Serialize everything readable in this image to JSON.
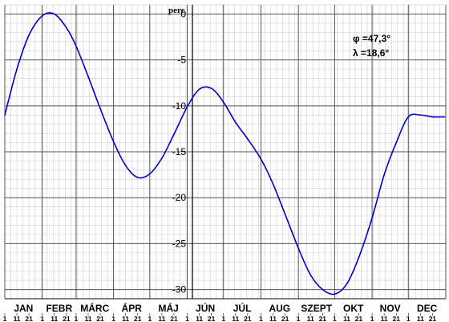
{
  "chart_data": {
    "type": "line",
    "title": "",
    "xlabel": "",
    "ylabel": "perc",
    "ylim": [
      -31,
      1
    ],
    "yticks": [
      "0",
      "-5",
      "-10",
      "-15",
      "-20",
      "-25",
      "-30"
    ],
    "grid": true,
    "months": [
      "JAN",
      "FEBR",
      "MÁRC",
      "ÁPR",
      "MÁJ",
      "JÚN",
      "JÚL",
      "AUG",
      "SZEPT",
      "OKT",
      "NOV",
      "DEC"
    ],
    "day_ticks": [
      "1",
      "11",
      "21"
    ],
    "annotations": [
      "φ =47,3°",
      "λ =18,6°"
    ],
    "line_color": "#0000cc",
    "series": [
      {
        "x": [
          "01-01",
          "01-11",
          "01-21",
          "02-01",
          "02-11",
          "02-21",
          "03-01",
          "03-11",
          "03-21",
          "04-01",
          "04-11",
          "04-21",
          "05-01",
          "05-11",
          "05-21",
          "06-01",
          "06-11",
          "06-21",
          "07-01",
          "07-11",
          "07-21",
          "08-01",
          "08-11",
          "08-21",
          "09-01",
          "09-11",
          "09-21",
          "10-01",
          "10-11",
          "10-21",
          "11-01",
          "11-11",
          "11-21",
          "12-01",
          "12-11",
          "12-21",
          "12-31"
        ],
        "values": [
          -11.0,
          -6.0,
          -2.3,
          -0.2,
          0.0,
          -1.5,
          -3.5,
          -6.8,
          -10.3,
          -13.9,
          -16.5,
          -17.8,
          -17.4,
          -15.7,
          -13.1,
          -10.1,
          -8.2,
          -8.1,
          -9.6,
          -11.8,
          -13.6,
          -15.8,
          -18.5,
          -21.8,
          -25.5,
          -28.4,
          -30.0,
          -30.5,
          -29.4,
          -26.5,
          -22.2,
          -17.5,
          -14.0,
          -11.2,
          -11.0,
          -11.2,
          -11.2
        ]
      }
    ]
  }
}
